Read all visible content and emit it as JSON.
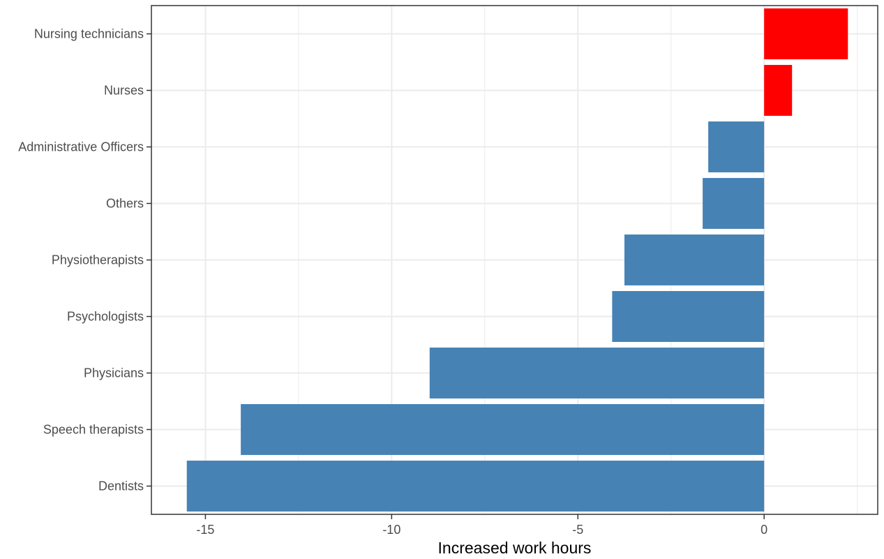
{
  "chart_data": {
    "type": "bar",
    "orientation": "horizontal",
    "title": "",
    "xlabel": "Increased work hours",
    "ylabel": "",
    "categories": [
      "Nursing technicians",
      "Nurses",
      "Administrative Officers",
      "Others",
      "Physiotherapists",
      "Psychologists",
      "Physicians",
      "Speech therapists",
      "Dentists"
    ],
    "values": [
      2.25,
      0.75,
      -1.5,
      -1.65,
      -3.75,
      -4.08,
      -8.98,
      -14.05,
      -15.5
    ],
    "xlim": [
      -16.45,
      3.05
    ],
    "x_ticks": [
      -15,
      -10,
      -5,
      0
    ],
    "x_tick_labels": [
      "-15",
      "-10",
      "-5",
      "0"
    ],
    "grid": true,
    "legend": "none",
    "colors": {
      "positive": "#ff0000",
      "negative": "#4682b4",
      "grid": "#ebebeb",
      "panel_border": "#333333",
      "tick_text": "#4d4d4d"
    }
  }
}
